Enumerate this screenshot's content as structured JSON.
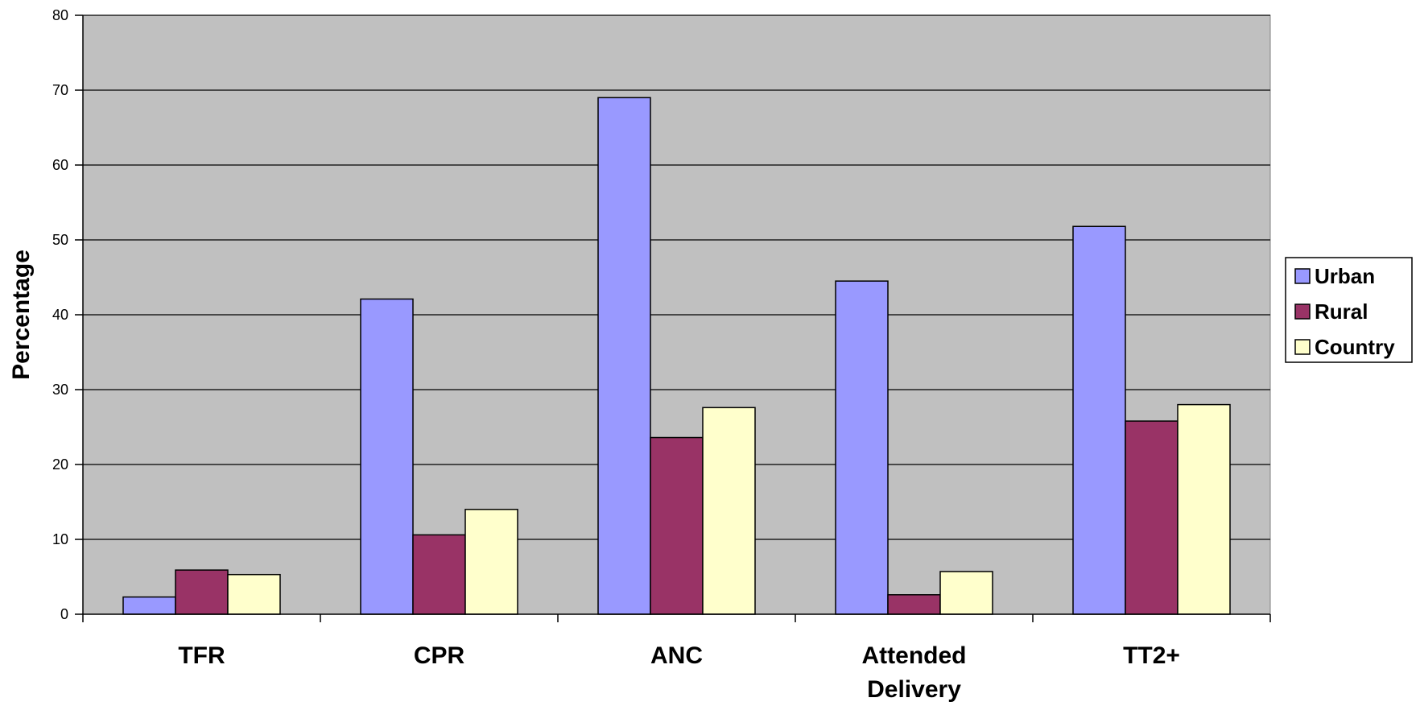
{
  "chart_data": {
    "type": "bar",
    "categories": [
      "TFR",
      "CPR",
      "ANC",
      "Attended Delivery",
      "TT2+"
    ],
    "series": [
      {
        "name": "Urban",
        "color": "#9999ff",
        "values": [
          2.3,
          42.1,
          69.0,
          44.5,
          51.8
        ]
      },
      {
        "name": "Rural",
        "color": "#993366",
        "values": [
          5.9,
          10.6,
          23.6,
          2.6,
          25.8
        ]
      },
      {
        "name": "Country",
        "color": "#ffffcc",
        "values": [
          5.3,
          14.0,
          27.6,
          5.7,
          28.0
        ]
      }
    ],
    "title": "",
    "xlabel": "",
    "ylabel": "Percentage",
    "ylim": [
      0,
      80
    ],
    "yticks": [
      0,
      10,
      20,
      30,
      40,
      50,
      60,
      70,
      80
    ],
    "grid": true,
    "plot_background": "#c0c0c0",
    "legend_position": "right"
  }
}
